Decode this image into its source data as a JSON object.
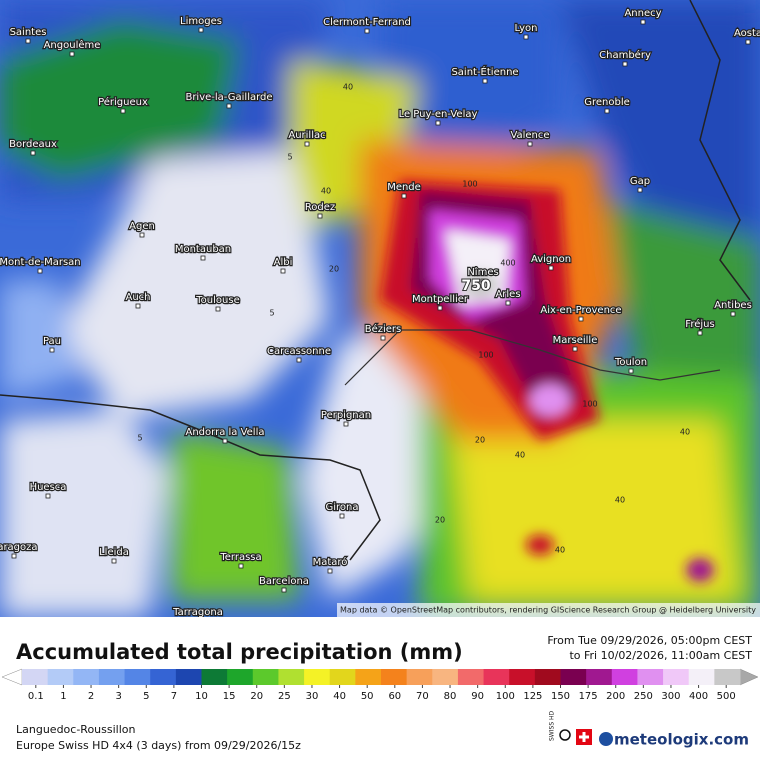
{
  "map": {
    "cities": [
      "Saintes",
      "Angoulême",
      "Limoges",
      "Clermont-Ferrand",
      "Lyon",
      "Annecy",
      "Aosta",
      "Périgueux",
      "Brive-la-Gaillarde",
      "Saint-Étienne",
      "Chambéry",
      "Grenoble",
      "Bordeaux",
      "Aurillac",
      "Le Puy-en-Velay",
      "Valence",
      "Gap",
      "Mende",
      "Rodez",
      "Agen",
      "Montauban",
      "Albi",
      "Mont-de-Marsan",
      "Nîmes",
      "Avignon",
      "Auch",
      "Toulouse",
      "Montpellier",
      "Arles",
      "Aix-en-Provence",
      "Antibes",
      "Fréjus",
      "Pau",
      "Béziers",
      "Carcassonne",
      "Marseille",
      "Toulon",
      "Perpignan",
      "Andorra la Vella",
      "Huesca",
      "Girona",
      "Lleida",
      "Terrassa",
      "Mataró",
      "Barcelona",
      "Tarragona",
      "Zaragoza"
    ],
    "peak_label": "750",
    "contour_labels": [
      "40",
      "40",
      "20",
      "5",
      "5",
      "100",
      "400",
      "100",
      "40",
      "40",
      "20",
      "40",
      "20",
      "5",
      "40",
      "100"
    ],
    "attribution": "Map data © OpenStreetMap contributors, rendering GIScience Research Group @ Heidelberg University"
  },
  "header": {
    "title": "Accumulated total precipitation (mm)",
    "from": "From Tue 09/29/2026, 05:00pm CEST",
    "to": "to Fri 10/02/2026, 11:00am CEST"
  },
  "legend": {
    "labels": [
      0.1,
      1,
      2,
      3,
      5,
      7,
      10,
      15,
      20,
      25,
      30,
      40,
      50,
      60,
      70,
      80,
      90,
      100,
      125,
      150,
      175,
      200,
      250,
      300,
      400,
      500
    ],
    "colors": [
      "#ffffff",
      "#d3d6f4",
      "#b3cbf7",
      "#93b6f5",
      "#74a0ef",
      "#5485e6",
      "#3564d4",
      "#1d46b0",
      "#0d7a36",
      "#1ea62b",
      "#5cc92c",
      "#b0e030",
      "#f4f226",
      "#e2d61c",
      "#f5a318",
      "#f4821c",
      "#f7a05a",
      "#f8b580",
      "#f26a6a",
      "#e8345a",
      "#c8102a",
      "#a00a1e",
      "#7a0050",
      "#a01890",
      "#d040e0",
      "#e090f0",
      "#f0c8f8",
      "#f4f0f8",
      "#c8c8c8",
      "#a8a8a8"
    ]
  },
  "footer": {
    "region": "Languedoc-Roussillon",
    "model": "Europe Swiss HD 4x4 (3 days) from 09/29/2026/15z",
    "brand": "meteologix.com",
    "swiss": "SWISS HD"
  }
}
